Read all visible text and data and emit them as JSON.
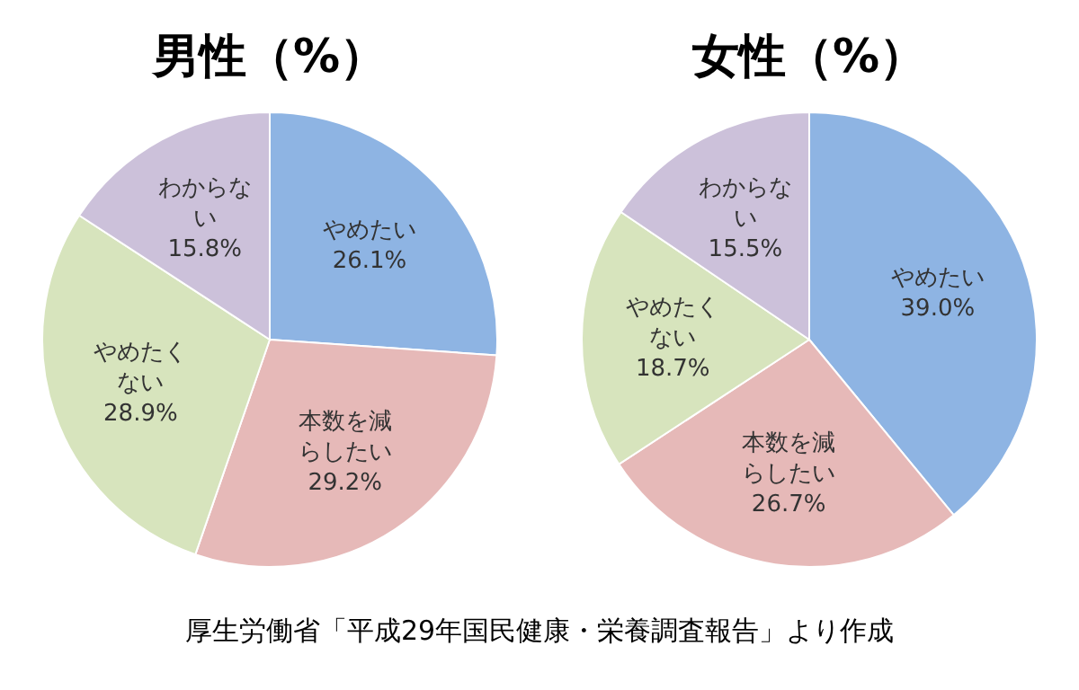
{
  "chart_data": [
    {
      "type": "pie",
      "title": "男性（%）",
      "categories": [
        "やめたい",
        "本数を減らしたい",
        "やめたくない",
        "わからない"
      ],
      "values": [
        26.1,
        29.2,
        28.9,
        15.8
      ],
      "value_labels": [
        "26.1%",
        "29.2%",
        "28.9%",
        "15.8%"
      ],
      "colors": [
        "#8eb4e3",
        "#e6b9b8",
        "#d7e4bd",
        "#ccc1da"
      ],
      "legend": false,
      "annotations": [
        "厚生労働省「平成29年国民健康・栄養調査報告」より作成"
      ]
    },
    {
      "type": "pie",
      "title": "女性（%）",
      "categories": [
        "やめたい",
        "本数を減らしたい",
        "やめたくない",
        "わからない"
      ],
      "values": [
        39.0,
        26.7,
        18.7,
        15.5
      ],
      "value_labels": [
        "39.0%",
        "26.7%",
        "18.7%",
        "15.5%"
      ],
      "colors": [
        "#8eb4e3",
        "#e6b9b8",
        "#d7e4bd",
        "#ccc1da"
      ],
      "legend": false
    }
  ]
}
